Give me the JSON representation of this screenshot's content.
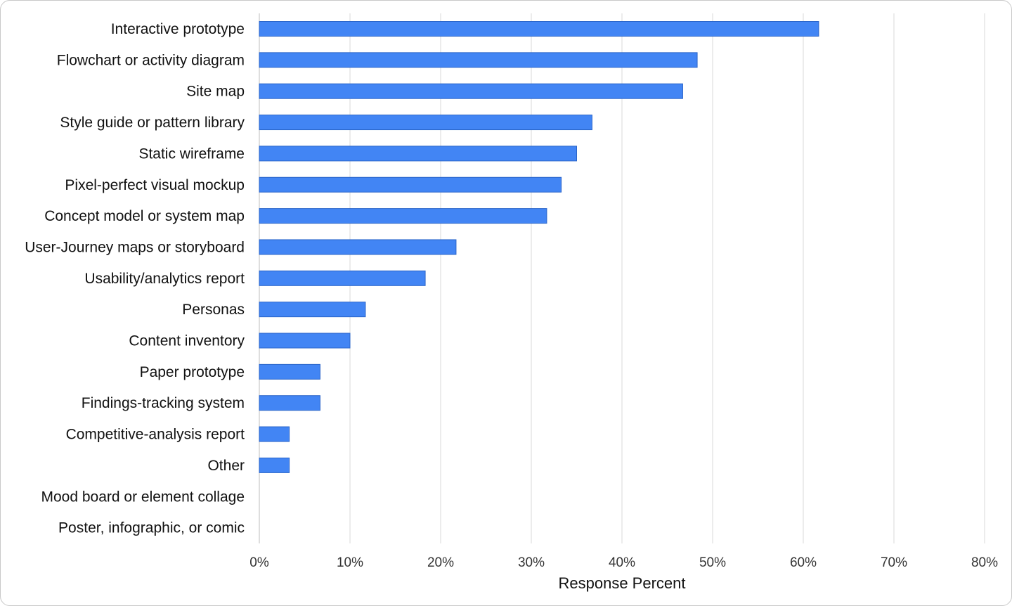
{
  "chart_data": {
    "type": "bar",
    "orientation": "horizontal",
    "title": "",
    "xlabel": "Response Percent",
    "ylabel": "",
    "xlim": [
      0,
      80
    ],
    "x_ticks": [
      0,
      10,
      20,
      30,
      40,
      50,
      60,
      70,
      80
    ],
    "x_tick_labels": [
      "0%",
      "10%",
      "20%",
      "30%",
      "40%",
      "50%",
      "60%",
      "70%",
      "80%"
    ],
    "grid": "vertical",
    "legend": "none",
    "bar_color": "#4285f4",
    "bar_edge_color": "#2a64c8",
    "categories": [
      "Interactive prototype",
      "Flowchart or activity diagram",
      "Site map",
      "Style guide or pattern library",
      "Static wireframe",
      "Pixel-perfect visual mockup",
      "Concept model or system map",
      "User-Journey maps or storyboard",
      "Usability/analytics report",
      "Personas",
      "Content inventory",
      "Paper prototype",
      "Findings-tracking system",
      "Competitive-analysis report",
      "Other",
      "Mood board or element collage",
      "Poster, infographic, or comic"
    ],
    "values": [
      61.7,
      48.3,
      46.7,
      36.7,
      35.0,
      33.3,
      31.7,
      21.7,
      18.3,
      11.7,
      10.0,
      6.7,
      6.7,
      3.3,
      3.3,
      0,
      0
    ]
  }
}
